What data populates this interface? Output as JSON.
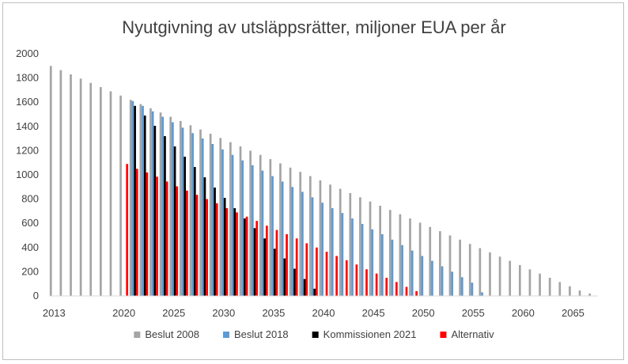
{
  "chart_data": {
    "type": "bar",
    "title": "Nyutgivning av utsläppsrätter, miljoner EUA per år",
    "xlabel": "",
    "ylabel": "",
    "ylim": [
      0,
      2000
    ],
    "yticks": [
      0,
      200,
      400,
      600,
      800,
      1000,
      1200,
      1400,
      1600,
      1800,
      2000
    ],
    "xlim": [
      2013,
      2067
    ],
    "xticks": [
      2013,
      2020,
      2025,
      2030,
      2035,
      2040,
      2045,
      2050,
      2055,
      2060,
      2065
    ],
    "grid": false,
    "legend_position": "bottom",
    "series": [
      {
        "name": "Beslut 2008",
        "color": "#a5a5a5",
        "x": [
          2013,
          2014,
          2015,
          2016,
          2017,
          2018,
          2019,
          2020,
          2021,
          2022,
          2023,
          2024,
          2025,
          2026,
          2027,
          2028,
          2029,
          2030,
          2031,
          2032,
          2033,
          2034,
          2035,
          2036,
          2037,
          2038,
          2039,
          2040,
          2041,
          2042,
          2043,
          2044,
          2045,
          2046,
          2047,
          2048,
          2049,
          2050,
          2051,
          2052,
          2053,
          2054,
          2055,
          2056,
          2057,
          2058,
          2059,
          2060,
          2061,
          2062,
          2063,
          2064,
          2065,
          2066,
          2067
        ],
        "values": [
          1900,
          1865,
          1830,
          1795,
          1760,
          1725,
          1690,
          1655,
          1620,
          1585,
          1550,
          1515,
          1480,
          1445,
          1410,
          1375,
          1340,
          1305,
          1270,
          1235,
          1200,
          1165,
          1130,
          1095,
          1060,
          1025,
          990,
          955,
          920,
          885,
          850,
          815,
          780,
          745,
          710,
          675,
          640,
          605,
          570,
          535,
          500,
          465,
          430,
          395,
          360,
          325,
          290,
          255,
          220,
          185,
          150,
          115,
          80,
          45,
          20
        ]
      },
      {
        "name": "Beslut 2018",
        "color": "#5b9bd5",
        "x": [
          2021,
          2022,
          2023,
          2024,
          2025,
          2026,
          2027,
          2028,
          2029,
          2030,
          2031,
          2032,
          2033,
          2034,
          2035,
          2036,
          2037,
          2038,
          2039,
          2040,
          2041,
          2042,
          2043,
          2044,
          2045,
          2046,
          2047,
          2048,
          2049,
          2050,
          2051,
          2052,
          2053,
          2054,
          2055,
          2056
        ],
        "values": [
          1610,
          1570,
          1525,
          1480,
          1435,
          1390,
          1345,
          1300,
          1255,
          1210,
          1165,
          1120,
          1080,
          1035,
          990,
          945,
          900,
          860,
          815,
          770,
          725,
          685,
          640,
          595,
          550,
          510,
          465,
          420,
          375,
          330,
          290,
          245,
          200,
          155,
          110,
          30
        ]
      },
      {
        "name": "Kommissionen 2021",
        "color": "#000000",
        "x": [
          2021,
          2022,
          2023,
          2024,
          2025,
          2026,
          2027,
          2028,
          2029,
          2030,
          2031,
          2032,
          2033,
          2034,
          2035,
          2036,
          2037,
          2038,
          2039
        ],
        "values": [
          1570,
          1490,
          1405,
          1320,
          1235,
          1150,
          1065,
          980,
          895,
          810,
          725,
          640,
          560,
          475,
          390,
          310,
          225,
          140,
          60
        ]
      },
      {
        "name": "Alternativ",
        "color": "#ff0000",
        "x": [
          2020,
          2021,
          2022,
          2023,
          2024,
          2025,
          2026,
          2027,
          2028,
          2029,
          2030,
          2031,
          2032,
          2033,
          2034,
          2035,
          2036,
          2037,
          2038,
          2039,
          2040,
          2041,
          2042,
          2043,
          2044,
          2045,
          2046,
          2047,
          2048,
          2049
        ],
        "values": [
          1090,
          1050,
          1020,
          985,
          945,
          905,
          870,
          835,
          800,
          765,
          725,
          690,
          655,
          620,
          580,
          545,
          510,
          475,
          435,
          400,
          365,
          330,
          295,
          260,
          220,
          185,
          150,
          115,
          75,
          40
        ]
      }
    ]
  }
}
